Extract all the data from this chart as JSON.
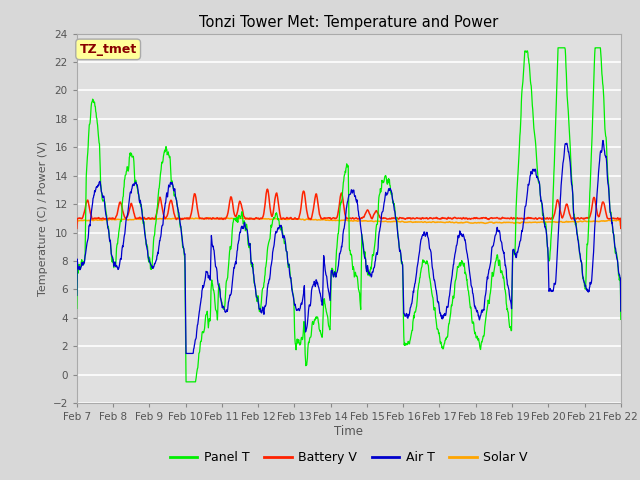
{
  "title": "Tonzi Tower Met: Temperature and Power",
  "xlabel": "Time",
  "ylabel": "Temperature (C) / Power (V)",
  "annotation": "TZ_tmet",
  "ylim": [
    -2,
    24
  ],
  "yticks": [
    -2,
    0,
    2,
    4,
    6,
    8,
    10,
    12,
    14,
    16,
    18,
    20,
    22,
    24
  ],
  "xlabels": [
    "Feb 7",
    "Feb 8",
    "Feb 9",
    "Feb 10",
    "Feb 11",
    "Feb 12",
    "Feb 13",
    "Feb 14",
    "Feb 15",
    "Feb 16",
    "Feb 17",
    "Feb 18",
    "Feb 19",
    "Feb 20",
    "Feb 21",
    "Feb 22"
  ],
  "colors": {
    "panel_t": "#00EE00",
    "battery_v": "#FF2200",
    "air_t": "#0000CC",
    "solar_v": "#FFA500"
  },
  "legend_labels": [
    "Panel T",
    "Battery V",
    "Air T",
    "Solar V"
  ],
  "plot_bg_color": "#E0E0E0",
  "grid_color": "#FFFFFF",
  "annotation_bg": "#FFFF99",
  "annotation_border": "#AAAAAA",
  "annotation_text_color": "#880000"
}
